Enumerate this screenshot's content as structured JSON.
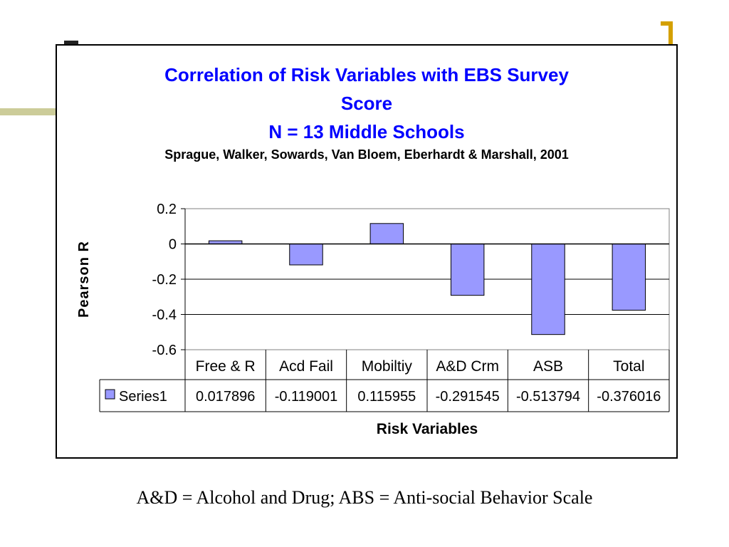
{
  "chart_data": {
    "type": "bar",
    "title": "Correlation of Risk Variables with EBS Survey Score",
    "title_lines": [
      "Correlation of Risk Variables with EBS Survey",
      "Score",
      "N = 13 Middle Schools"
    ],
    "subtitle": "Sprague, Walker, Sowards, Van Bloem, Eberhardt & Marshall, 2001",
    "xlabel": "Risk Variables",
    "ylabel": "Pearson R",
    "ylim": [
      -0.6,
      0.2
    ],
    "yticks": [
      "0.2",
      "0",
      "-0.2",
      "-0.4",
      "-0.6"
    ],
    "ytick_values": [
      0.2,
      0,
      -0.2,
      -0.4,
      -0.6
    ],
    "grid": true,
    "legend": "data-table",
    "categories": [
      "Free & R",
      "Acd Fail",
      "Mobiltiy",
      "A&D Crm",
      "ASB",
      "Total"
    ],
    "series": [
      {
        "name": "Series1",
        "values": [
          0.017896,
          -0.119001,
          0.115955,
          -0.291545,
          -0.513794,
          -0.376016
        ],
        "value_labels": [
          "0.017896",
          "-0.119001",
          "0.115955",
          "-0.291545",
          "-0.513794",
          "-0.376016"
        ],
        "color": "#9999ff"
      }
    ]
  },
  "footnote": "A&D = Alcohol and Drug; ABS = Anti-social Behavior Scale",
  "colors": {
    "title": "#0000ff",
    "bar": "#9999ff",
    "decor_olive": "#cccc99",
    "decor_gold": "#d4a000"
  }
}
